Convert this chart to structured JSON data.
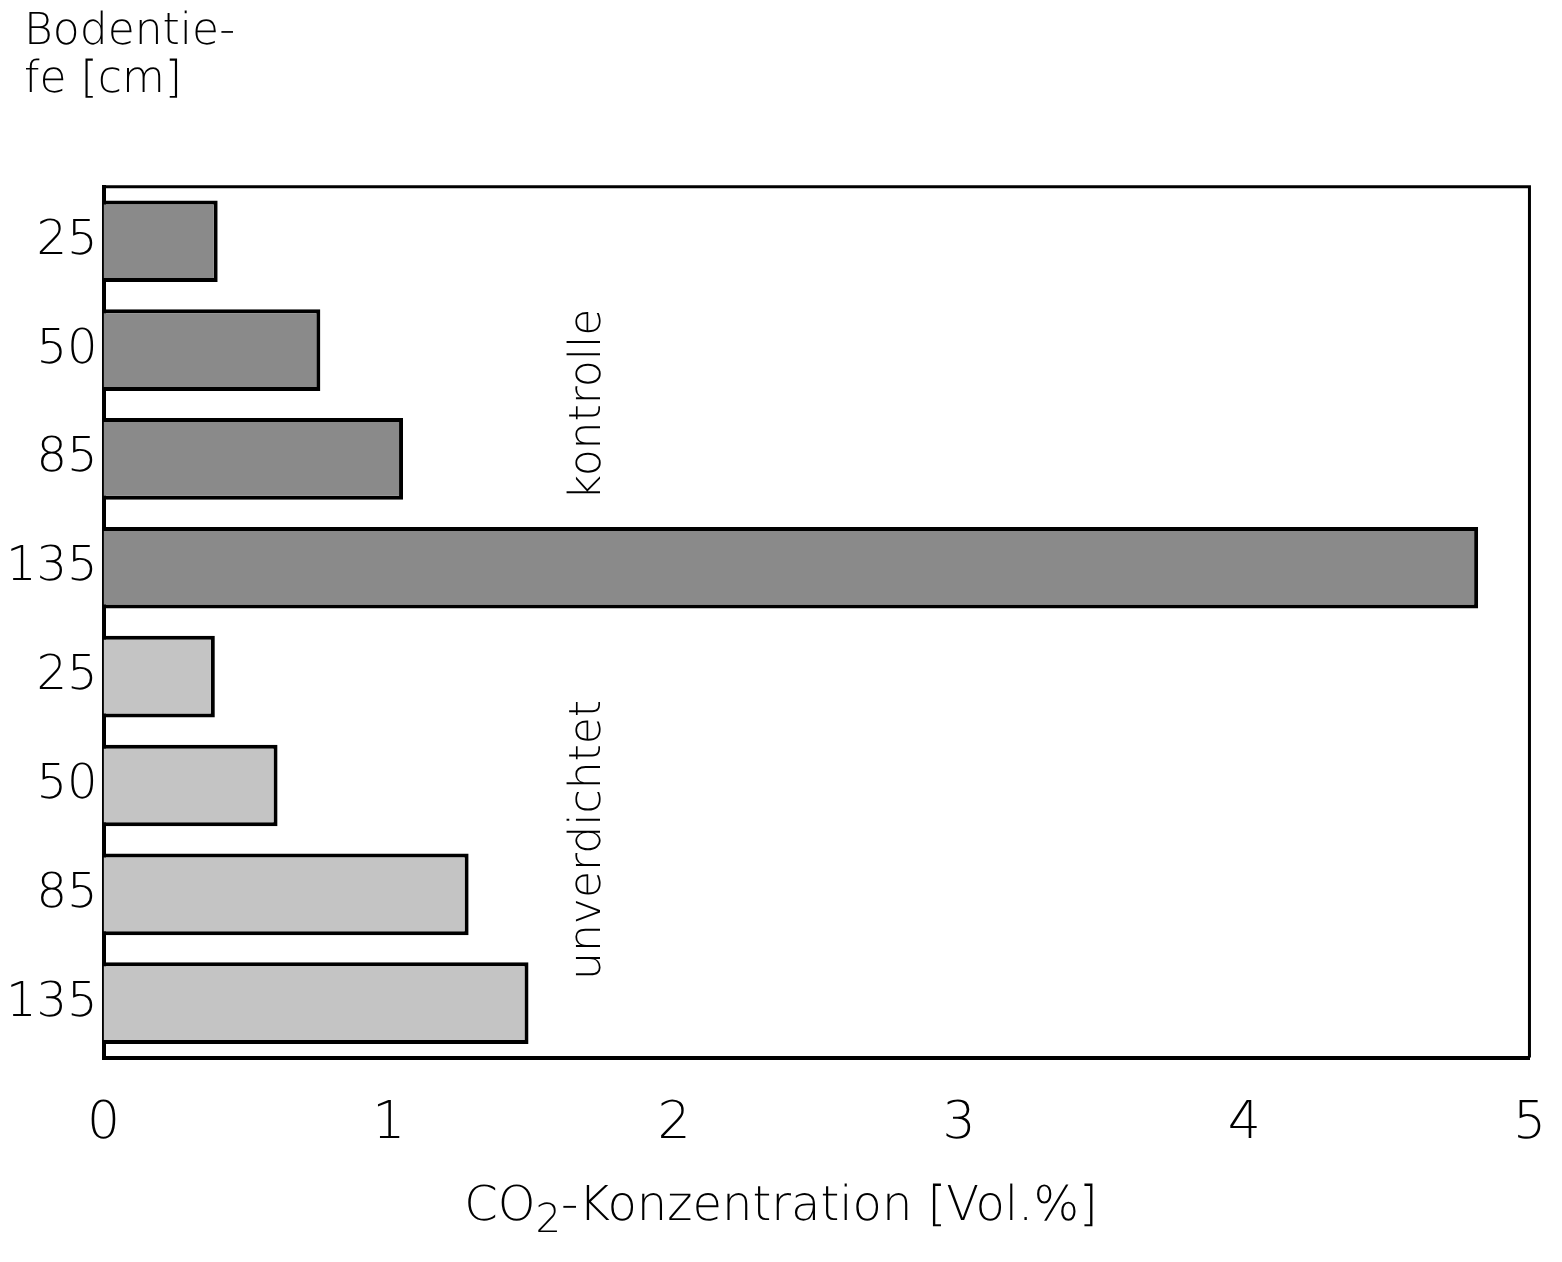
{
  "chart_data": {
    "type": "bar",
    "orientation": "horizontal",
    "ylabel": "Bodentie-\nfe [cm]",
    "xlabel": "CO$_{2}$-Konzentration [Vol.%]",
    "categories": [
      "25",
      "50",
      "85",
      "135",
      "25",
      "50",
      "85",
      "135"
    ],
    "series": [
      {
        "name": "kontrolle",
        "color": "#8a8a8a",
        "values": [
          0.4,
          0.76,
          1.05,
          4.82,
          null,
          null,
          null,
          null
        ]
      },
      {
        "name": "unverdichtet",
        "color": "#c4c4c4",
        "values": [
          null,
          null,
          null,
          null,
          0.39,
          0.61,
          1.28,
          1.49
        ]
      }
    ],
    "xlim": [
      0,
      5
    ],
    "xticks": [
      0,
      1,
      2,
      3,
      4,
      5
    ],
    "grid": false,
    "legend": false
  }
}
